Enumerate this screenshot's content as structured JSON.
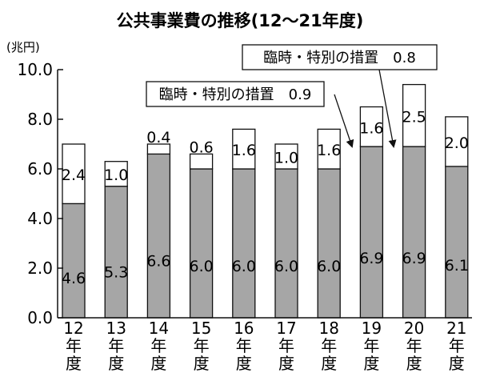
{
  "chart_data": {
    "type": "bar",
    "stacked": true,
    "title": "公共事業費の推移(12～21年度)",
    "ylabel": "(兆円)",
    "ylim": [
      0,
      10
    ],
    "yticks": [
      "0.0",
      "2.0",
      "4.0",
      "6.0",
      "8.0",
      "10.0"
    ],
    "categories": [
      "12",
      "13",
      "14",
      "15",
      "16",
      "17",
      "18",
      "19",
      "20",
      "21"
    ],
    "category_suffix": [
      "年",
      "度"
    ],
    "series": [
      {
        "values": [
          4.6,
          5.3,
          6.6,
          6.0,
          6.0,
          6.0,
          6.0,
          6.9,
          6.9,
          6.1
        ],
        "labels": [
          "4.6",
          "5.3",
          "6.6",
          "6.0",
          "6.0",
          "6.0",
          "6.0",
          "6.9",
          "6.9",
          "6.1"
        ],
        "color": "#a6a6a6"
      },
      {
        "values": [
          2.4,
          1.0,
          0.4,
          0.6,
          1.6,
          1.0,
          1.6,
          1.6,
          2.5,
          2.0
        ],
        "labels": [
          "2.4",
          "1.0",
          "0.4",
          "0.6",
          "1.6",
          "1.0",
          "1.6",
          "1.6",
          "2.5",
          "2.0"
        ],
        "color": "#ffffff"
      }
    ],
    "annotations": [
      {
        "text": "臨時・特別の措置　0.9",
        "target": "19"
      },
      {
        "text": "臨時・特別の措置　0.8",
        "target": "20"
      }
    ],
    "grid": false
  }
}
